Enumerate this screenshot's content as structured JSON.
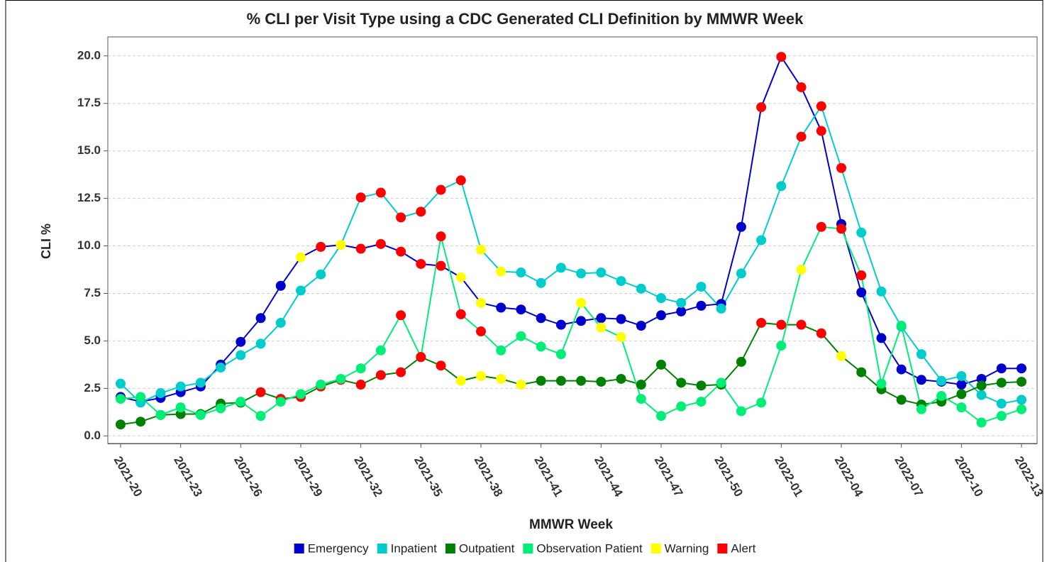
{
  "chart_data": {
    "type": "line",
    "title": "% CLI per Visit Type using a CDC Generated CLI Definition by MMWR Week",
    "x_label": "MMWR Week",
    "y_label": "CLI %",
    "categories": [
      "2021-20",
      null,
      null,
      "2021-23",
      null,
      null,
      "2021-26",
      null,
      null,
      "2021-29",
      null,
      null,
      "2021-32",
      null,
      null,
      "2021-35",
      null,
      null,
      "2021-38",
      null,
      null,
      "2021-41",
      null,
      null,
      "2021-44",
      null,
      null,
      "2021-47",
      null,
      null,
      "2021-50",
      null,
      null,
      "2022-01",
      null,
      null,
      "2022-04",
      null,
      null,
      "2022-07",
      null,
      null,
      "2022-10",
      null,
      null,
      "2022-13"
    ],
    "ylim": [
      -0.4,
      21
    ],
    "yticks": [
      {
        "value": 0,
        "label": "0.0"
      },
      2.5,
      {
        "value": 5,
        "label": "5.0"
      },
      7.5,
      {
        "value": 10,
        "label": "10.0"
      },
      12.5,
      {
        "value": 15,
        "label": "15.0"
      },
      17.5,
      {
        "value": 20,
        "label": "20.0"
      }
    ],
    "grid": true,
    "legend": "bottom",
    "series": [
      {
        "name": "Emergency",
        "color": "#0000cc",
        "values": [
          2.05,
          1.8,
          2.0,
          2.3,
          2.6,
          3.75,
          4.95,
          6.2,
          7.9,
          9.4,
          9.95,
          10.05,
          9.85,
          10.1,
          9.7,
          9.05,
          8.95,
          8.35,
          7.0,
          6.75,
          6.65,
          6.2,
          5.85,
          6.05,
          6.2,
          6.15,
          5.8,
          6.35,
          6.55,
          6.85,
          6.95,
          11.0,
          17.3,
          19.95,
          18.35,
          16.05,
          11.15,
          7.55,
          5.15,
          3.5,
          2.95,
          2.85,
          2.7,
          3.0,
          3.55,
          3.55
        ],
        "marker_colors": [
          "#0000cc",
          "#0000cc",
          "#0000cc",
          "#0000cc",
          "#0000cc",
          "#0000cc",
          "#0000cc",
          "#0000cc",
          "#0000cc",
          "#ffff00",
          "#ff0000",
          "#ffff00",
          "#ff0000",
          "#ff0000",
          "#ff0000",
          "#ff0000",
          "#ff0000",
          "#ffff00",
          "#ffff00",
          "#0000cc",
          "#0000cc",
          "#0000cc",
          "#0000cc",
          "#0000cc",
          "#0000cc",
          "#0000cc",
          "#0000cc",
          "#0000cc",
          "#0000cc",
          "#0000cc",
          "#0000cc",
          "#0000cc",
          "#ff0000",
          "#ff0000",
          "#ff0000",
          "#ff0000",
          "#0000cc",
          "#0000cc",
          "#0000cc",
          "#0000cc",
          "#0000cc",
          "#0000cc",
          "#0000cc",
          "#0000cc",
          "#0000cc",
          "#0000cc"
        ]
      },
      {
        "name": "Inpatient",
        "color": "#00cccc",
        "values": [
          2.75,
          1.75,
          2.25,
          2.6,
          2.8,
          3.6,
          4.25,
          4.85,
          5.95,
          7.65,
          8.5,
          10.05,
          12.55,
          12.8,
          11.5,
          11.8,
          12.95,
          13.45,
          9.8,
          8.65,
          8.6,
          8.05,
          8.85,
          8.55,
          8.6,
          8.15,
          7.75,
          7.25,
          7.0,
          7.85,
          6.7,
          8.55,
          10.3,
          13.15,
          15.75,
          17.35,
          14.1,
          10.7,
          7.6,
          5.75,
          4.3,
          2.9,
          3.15,
          2.15,
          1.7,
          1.9
        ],
        "marker_colors": [
          "#00cccc",
          "#00cccc",
          "#00cccc",
          "#00cccc",
          "#00cccc",
          "#00cccc",
          "#00cccc",
          "#00cccc",
          "#00cccc",
          "#00cccc",
          "#00cccc",
          "#ffff00",
          "#ff0000",
          "#ff0000",
          "#ff0000",
          "#ff0000",
          "#ff0000",
          "#ff0000",
          "#ffff00",
          "#ffff00",
          "#00cccc",
          "#00cccc",
          "#00cccc",
          "#00cccc",
          "#00cccc",
          "#00cccc",
          "#00cccc",
          "#00cccc",
          "#00cccc",
          "#00cccc",
          "#00cccc",
          "#00cccc",
          "#00cccc",
          "#00cccc",
          "#ff0000",
          "#ff0000",
          "#ff0000",
          "#00cccc",
          "#00cccc",
          "#00cccc",
          "#00cccc",
          "#00cccc",
          "#00cccc",
          "#00cccc",
          "#00cccc",
          "#00cccc"
        ]
      },
      {
        "name": "Outpatient",
        "color": "#008000",
        "values": [
          0.6,
          0.75,
          1.1,
          1.15,
          1.15,
          1.7,
          1.75,
          2.3,
          1.95,
          2.05,
          2.6,
          2.95,
          2.7,
          3.2,
          3.35,
          4.15,
          3.7,
          2.9,
          3.15,
          3.0,
          2.7,
          2.9,
          2.9,
          2.9,
          2.85,
          3.0,
          2.7,
          3.75,
          2.8,
          2.65,
          2.7,
          3.9,
          5.95,
          5.85,
          5.85,
          5.4,
          4.2,
          3.35,
          2.45,
          1.9,
          1.65,
          1.8,
          2.2,
          2.65,
          2.8,
          2.85
        ],
        "marker_colors": [
          "#008000",
          "#008000",
          "#008000",
          "#008000",
          "#008000",
          "#008000",
          "#008000",
          "#ff0000",
          "#ff0000",
          "#ff0000",
          "#ff0000",
          "#ff0000",
          "#ff0000",
          "#ff0000",
          "#ff0000",
          "#ff0000",
          "#ff0000",
          "#ffff00",
          "#ffff00",
          "#ffff00",
          "#ffff00",
          "#008000",
          "#008000",
          "#008000",
          "#008000",
          "#008000",
          "#008000",
          "#008000",
          "#008000",
          "#008000",
          "#008000",
          "#008000",
          "#ff0000",
          "#ff0000",
          "#ff0000",
          "#ff0000",
          "#ffff00",
          "#008000",
          "#008000",
          "#008000",
          "#008000",
          "#008000",
          "#008000",
          "#008000",
          "#008000",
          "#008000"
        ]
      },
      {
        "name": "Observation Patient",
        "color": "#00ee77",
        "values": [
          1.95,
          2.05,
          1.1,
          1.5,
          1.1,
          1.45,
          1.8,
          1.05,
          1.8,
          2.2,
          2.7,
          3.0,
          3.55,
          4.5,
          6.35,
          4.15,
          10.5,
          6.4,
          5.5,
          4.5,
          5.25,
          4.7,
          4.3,
          7.0,
          5.7,
          5.2,
          1.95,
          1.05,
          1.55,
          1.8,
          2.8,
          1.3,
          1.75,
          4.75,
          8.75,
          11.0,
          10.9,
          8.45,
          2.75,
          5.8,
          1.4,
          2.1,
          1.5,
          0.7,
          1.05,
          1.4
        ],
        "marker_colors": [
          "#00ee77",
          "#00ee77",
          "#00ee77",
          "#00ee77",
          "#00ee77",
          "#00ee77",
          "#00ee77",
          "#00ee77",
          "#00ee77",
          "#00ee77",
          "#00ee77",
          "#00ee77",
          "#00ee77",
          "#00ee77",
          "#ff0000",
          "#ff0000",
          "#ff0000",
          "#ff0000",
          "#ff0000",
          "#00ee77",
          "#00ee77",
          "#00ee77",
          "#00ee77",
          "#ffff00",
          "#ffff00",
          "#ffff00",
          "#00ee77",
          "#00ee77",
          "#00ee77",
          "#00ee77",
          "#00ee77",
          "#00ee77",
          "#00ee77",
          "#00ee77",
          "#ffff00",
          "#ff0000",
          "#ff0000",
          "#ff0000",
          "#00ee77",
          "#00ee77",
          "#00ee77",
          "#00ee77",
          "#00ee77",
          "#00ee77",
          "#00ee77",
          "#00ee77"
        ]
      }
    ],
    "status_legend": [
      {
        "name": "Warning",
        "color": "#ffff00"
      },
      {
        "name": "Alert",
        "color": "#ff0000"
      }
    ]
  }
}
